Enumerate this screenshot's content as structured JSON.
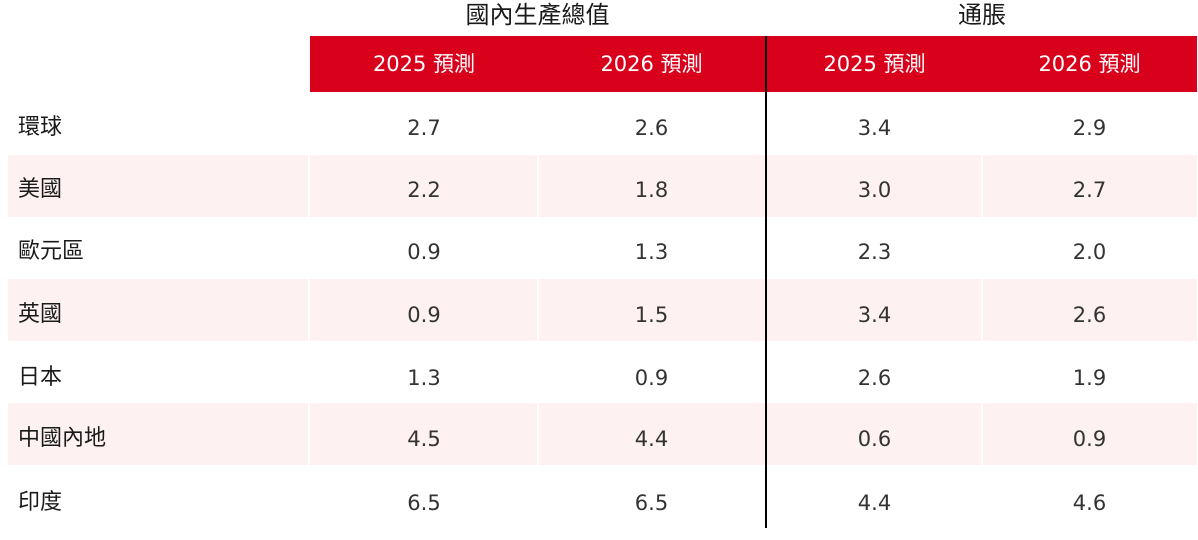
{
  "group_headers": {
    "gdp": "國內生產總值",
    "inflation": "通脹"
  },
  "sub_headers": [
    "2025 預測",
    "2026 預測",
    "2025 預測",
    "2026 預測"
  ],
  "colors": {
    "header_red": "#d9001b",
    "row_shade": "#fdf1f2"
  },
  "rows": [
    {
      "label": "環球",
      "values": [
        "2.7",
        "2.6",
        "3.4",
        "2.9"
      ]
    },
    {
      "label": "美國",
      "values": [
        "2.2",
        "1.8",
        "3.0",
        "2.7"
      ]
    },
    {
      "label": "歐元區",
      "values": [
        "0.9",
        "1.3",
        "2.3",
        "2.0"
      ]
    },
    {
      "label": "英國",
      "values": [
        "0.9",
        "1.5",
        "3.4",
        "2.6"
      ]
    },
    {
      "label": "日本",
      "values": [
        "1.3",
        "0.9",
        "2.6",
        "1.9"
      ]
    },
    {
      "label": "中國內地",
      "values": [
        "4.5",
        "4.4",
        "0.6",
        "0.9"
      ]
    },
    {
      "label": "印度",
      "values": [
        "6.5",
        "6.5",
        "4.4",
        "4.6"
      ]
    }
  ]
}
